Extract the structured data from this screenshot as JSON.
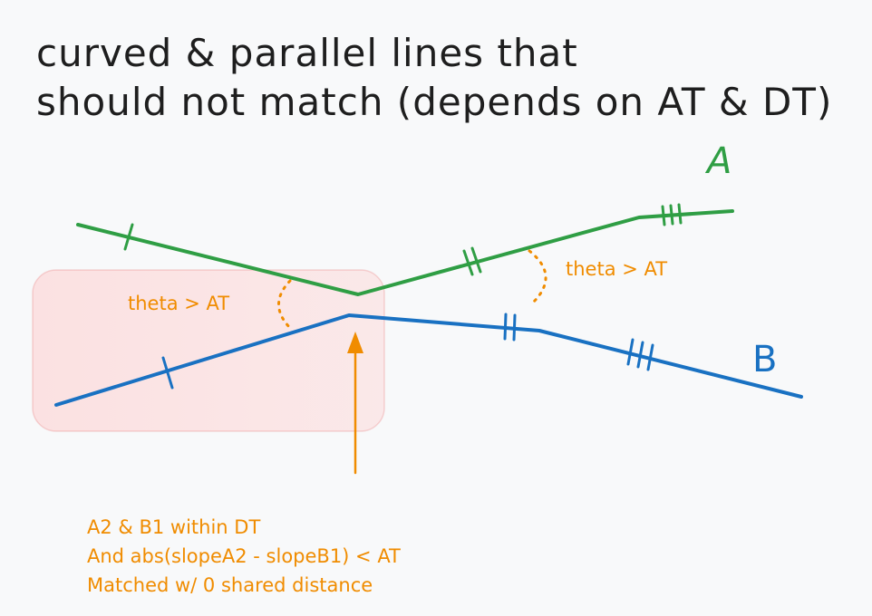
{
  "title": {
    "line1": "curved & parallel lines that",
    "line2": "should not match (depends on AT & DT)"
  },
  "labels": {
    "line_a": "A",
    "line_b": "B",
    "theta_left": "theta > AT",
    "theta_right": "theta > AT"
  },
  "note": {
    "line1": "A2 & B1 within DT",
    "line2": "And abs(slopeA2 - slopeB1) < AT",
    "line3": "Matched w/ 0 shared distance"
  },
  "colors": {
    "line_a": "#2f9e44",
    "line_b": "#1971c2",
    "annotation": "#f08c00",
    "highlight_fill": "#ffc9c9",
    "highlight_stroke": "#e03131",
    "text": "#1e1e1e"
  }
}
